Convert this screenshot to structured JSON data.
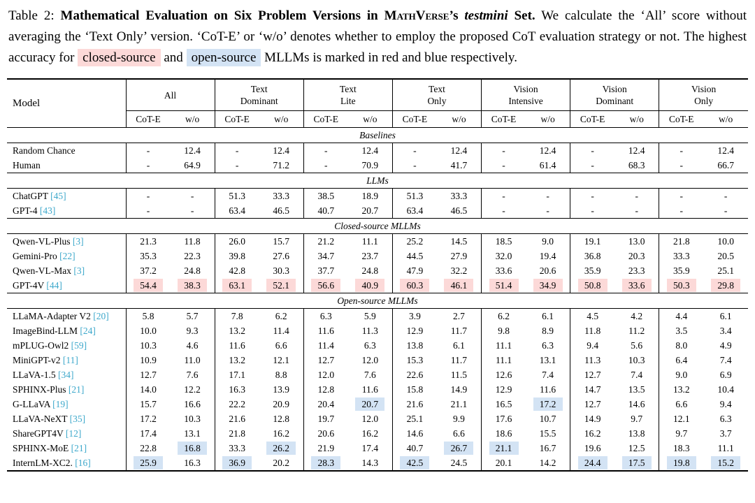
{
  "colors": {
    "pink_highlight": "#fcd9d8",
    "blue_highlight": "#d3e3f4",
    "citation": "#3da8cb"
  },
  "caption": {
    "prefix": "Table 2: ",
    "bold_1": "Mathematical Evaluation on Six Problem Versions in ",
    "smallcaps": "MathVerse",
    "bold_2": "’s ",
    "bold_italic": "testmini",
    "bold_3": " Set.",
    "body_1": " We calculate the ‘All’ score without averaging the ‘Text Only’ version. ‘CoT-E’ or ‘w/o’ denotes whether to employ the proposed CoT evaluation strategy or not. The highest accuracy for ",
    "highlight_closed": "closed-source",
    "body_2": " and ",
    "highlight_open": "open-source",
    "body_3": " MLLMs is marked in red and blue respectively."
  },
  "table": {
    "model_header": "Model",
    "groups": [
      "All",
      "Text\nDominant",
      "Text\nLite",
      "Text\nOnly",
      "Vision\nIntensive",
      "Vision\nDominant",
      "Vision\nOnly"
    ],
    "sub_headers": [
      "CoT-E",
      "w/o"
    ],
    "sections": [
      {
        "title": "Baselines",
        "rows": [
          {
            "model": "Random Chance",
            "cite": "",
            "values": [
              "-",
              "12.4",
              "-",
              "12.4",
              "-",
              "12.4",
              "-",
              "12.4",
              "-",
              "12.4",
              "-",
              "12.4",
              "-",
              "12.4"
            ]
          },
          {
            "model": "Human",
            "cite": "",
            "values": [
              "-",
              "64.9",
              "-",
              "71.2",
              "-",
              "70.9",
              "-",
              "41.7",
              "-",
              "61.4",
              "-",
              "68.3",
              "-",
              "66.7"
            ]
          }
        ]
      },
      {
        "title": "LLMs",
        "rows": [
          {
            "model": "ChatGPT",
            "cite": "[45]",
            "values": [
              "-",
              "-",
              "51.3",
              "33.3",
              "38.5",
              "18.9",
              "51.3",
              "33.3",
              "-",
              "-",
              "-",
              "-",
              "-",
              "-"
            ]
          },
          {
            "model": "GPT-4",
            "cite": "[43]",
            "values": [
              "-",
              "-",
              "63.4",
              "46.5",
              "40.7",
              "20.7",
              "63.4",
              "46.5",
              "-",
              "-",
              "-",
              "-",
              "-",
              "-"
            ]
          }
        ]
      },
      {
        "title": "Closed-source MLLMs",
        "rows": [
          {
            "model": "Qwen-VL-Plus",
            "cite": "[3]",
            "values": [
              "21.3",
              "11.8",
              "26.0",
              "15.7",
              "21.2",
              "11.1",
              "25.2",
              "14.5",
              "18.5",
              "9.0",
              "19.1",
              "13.0",
              "21.8",
              "10.0"
            ]
          },
          {
            "model": "Gemini-Pro",
            "cite": "[22]",
            "values": [
              "35.3",
              "22.3",
              "39.8",
              "27.6",
              "34.7",
              "23.7",
              "44.5",
              "27.9",
              "32.0",
              "19.4",
              "36.8",
              "20.3",
              "33.3",
              "20.5"
            ]
          },
          {
            "model": "Qwen-VL-Max",
            "cite": "[3]",
            "values": [
              "37.2",
              "24.8",
              "42.8",
              "30.3",
              "37.7",
              "24.8",
              "47.9",
              "32.2",
              "33.6",
              "20.6",
              "35.9",
              "23.3",
              "35.9",
              "25.1"
            ]
          },
          {
            "model": "GPT-4V",
            "cite": "[44]",
            "values": [
              "54.4",
              "38.3",
              "63.1",
              "52.1",
              "56.6",
              "40.9",
              "60.3",
              "46.1",
              "51.4",
              "34.9",
              "50.8",
              "33.6",
              "50.3",
              "29.8"
            ],
            "hl": [
              "p",
              "p",
              "p",
              "p",
              "p",
              "p",
              "p",
              "p",
              "p",
              "p",
              "p",
              "p",
              "p",
              "p"
            ]
          }
        ]
      },
      {
        "title": "Open-source MLLMs",
        "rows": [
          {
            "model": "LLaMA-Adapter V2",
            "cite": "[20]",
            "values": [
              "5.8",
              "5.7",
              "7.8",
              "6.2",
              "6.3",
              "5.9",
              "3.9",
              "2.7",
              "6.2",
              "6.1",
              "4.5",
              "4.2",
              "4.4",
              "6.1"
            ]
          },
          {
            "model": "ImageBind-LLM",
            "cite": "[24]",
            "values": [
              "10.0",
              "9.3",
              "13.2",
              "11.4",
              "11.6",
              "11.3",
              "12.9",
              "11.7",
              "9.8",
              "8.9",
              "11.8",
              "11.2",
              "3.5",
              "3.4"
            ]
          },
          {
            "model": "mPLUG-Owl2",
            "cite": "[59]",
            "values": [
              "10.3",
              "4.6",
              "11.6",
              "6.6",
              "11.4",
              "6.3",
              "13.8",
              "6.1",
              "11.1",
              "6.3",
              "9.4",
              "5.6",
              "8.0",
              "4.9"
            ]
          },
          {
            "model": "MiniGPT-v2",
            "cite": "[11]",
            "values": [
              "10.9",
              "11.0",
              "13.2",
              "12.1",
              "12.7",
              "12.0",
              "15.3",
              "11.7",
              "11.1",
              "13.1",
              "11.3",
              "10.3",
              "6.4",
              "7.4"
            ]
          },
          {
            "model": "LLaVA-1.5",
            "cite": "[34]",
            "values": [
              "12.7",
              "7.6",
              "17.1",
              "8.8",
              "12.0",
              "7.6",
              "22.6",
              "11.5",
              "12.6",
              "7.4",
              "12.7",
              "7.4",
              "9.0",
              "6.9"
            ]
          },
          {
            "model": "SPHINX-Plus",
            "cite": "[21]",
            "values": [
              "14.0",
              "12.2",
              "16.3",
              "13.9",
              "12.8",
              "11.6",
              "15.8",
              "14.9",
              "12.9",
              "11.6",
              "14.7",
              "13.5",
              "13.2",
              "10.4"
            ]
          },
          {
            "model": "G-LLaVA",
            "cite": "[19]",
            "values": [
              "15.7",
              "16.6",
              "22.2",
              "20.9",
              "20.4",
              "20.7",
              "21.6",
              "21.1",
              "16.5",
              "17.2",
              "12.7",
              "14.6",
              "6.6",
              "9.4"
            ],
            "hl": [
              "",
              "",
              "",
              "",
              "",
              "b",
              "",
              "",
              "",
              "b",
              "",
              "",
              "",
              ""
            ]
          },
          {
            "model": "LLaVA-NeXT",
            "cite": "[35]",
            "values": [
              "17.2",
              "10.3",
              "21.6",
              "12.8",
              "19.7",
              "12.0",
              "25.1",
              "9.9",
              "17.6",
              "10.7",
              "14.9",
              "9.7",
              "12.1",
              "6.3"
            ]
          },
          {
            "model": "ShareGPT4V",
            "cite": "[12]",
            "values": [
              "17.4",
              "13.1",
              "21.8",
              "16.2",
              "20.6",
              "16.2",
              "14.6",
              "6.6",
              "18.6",
              "15.5",
              "16.2",
              "13.8",
              "9.7",
              "3.7"
            ]
          },
          {
            "model": "SPHINX-MoE",
            "cite": "[21]",
            "values": [
              "22.8",
              "16.8",
              "33.3",
              "26.2",
              "21.9",
              "17.4",
              "40.7",
              "26.7",
              "21.1",
              "16.7",
              "19.6",
              "12.5",
              "18.3",
              "11.1"
            ],
            "hl": [
              "",
              "b",
              "",
              "b",
              "",
              "",
              "",
              "b",
              "b",
              "",
              "",
              "",
              "",
              ""
            ]
          },
          {
            "model": "InternLM-XC2.",
            "cite": "[16]",
            "values": [
              "25.9",
              "16.3",
              "36.9",
              "20.2",
              "28.3",
              "14.3",
              "42.5",
              "24.5",
              "20.1",
              "14.2",
              "24.4",
              "17.5",
              "19.8",
              "15.2"
            ],
            "hl": [
              "b",
              "",
              "b",
              "",
              "b",
              "",
              "b",
              "",
              "",
              "",
              "b",
              "b",
              "b",
              "b"
            ]
          }
        ]
      }
    ]
  }
}
